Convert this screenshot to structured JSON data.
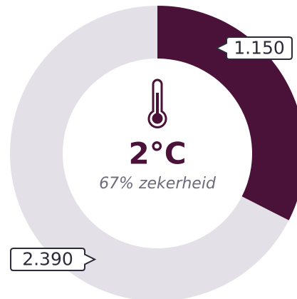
{
  "chart_data": {
    "type": "donut",
    "values": [
      1150,
      2390
    ],
    "value_labels": [
      "1.150",
      "2.390"
    ],
    "colors": [
      "#4a1238",
      "#e3e1e7"
    ],
    "center_title": "2°C",
    "center_subtitle": "67% zekerheid"
  }
}
